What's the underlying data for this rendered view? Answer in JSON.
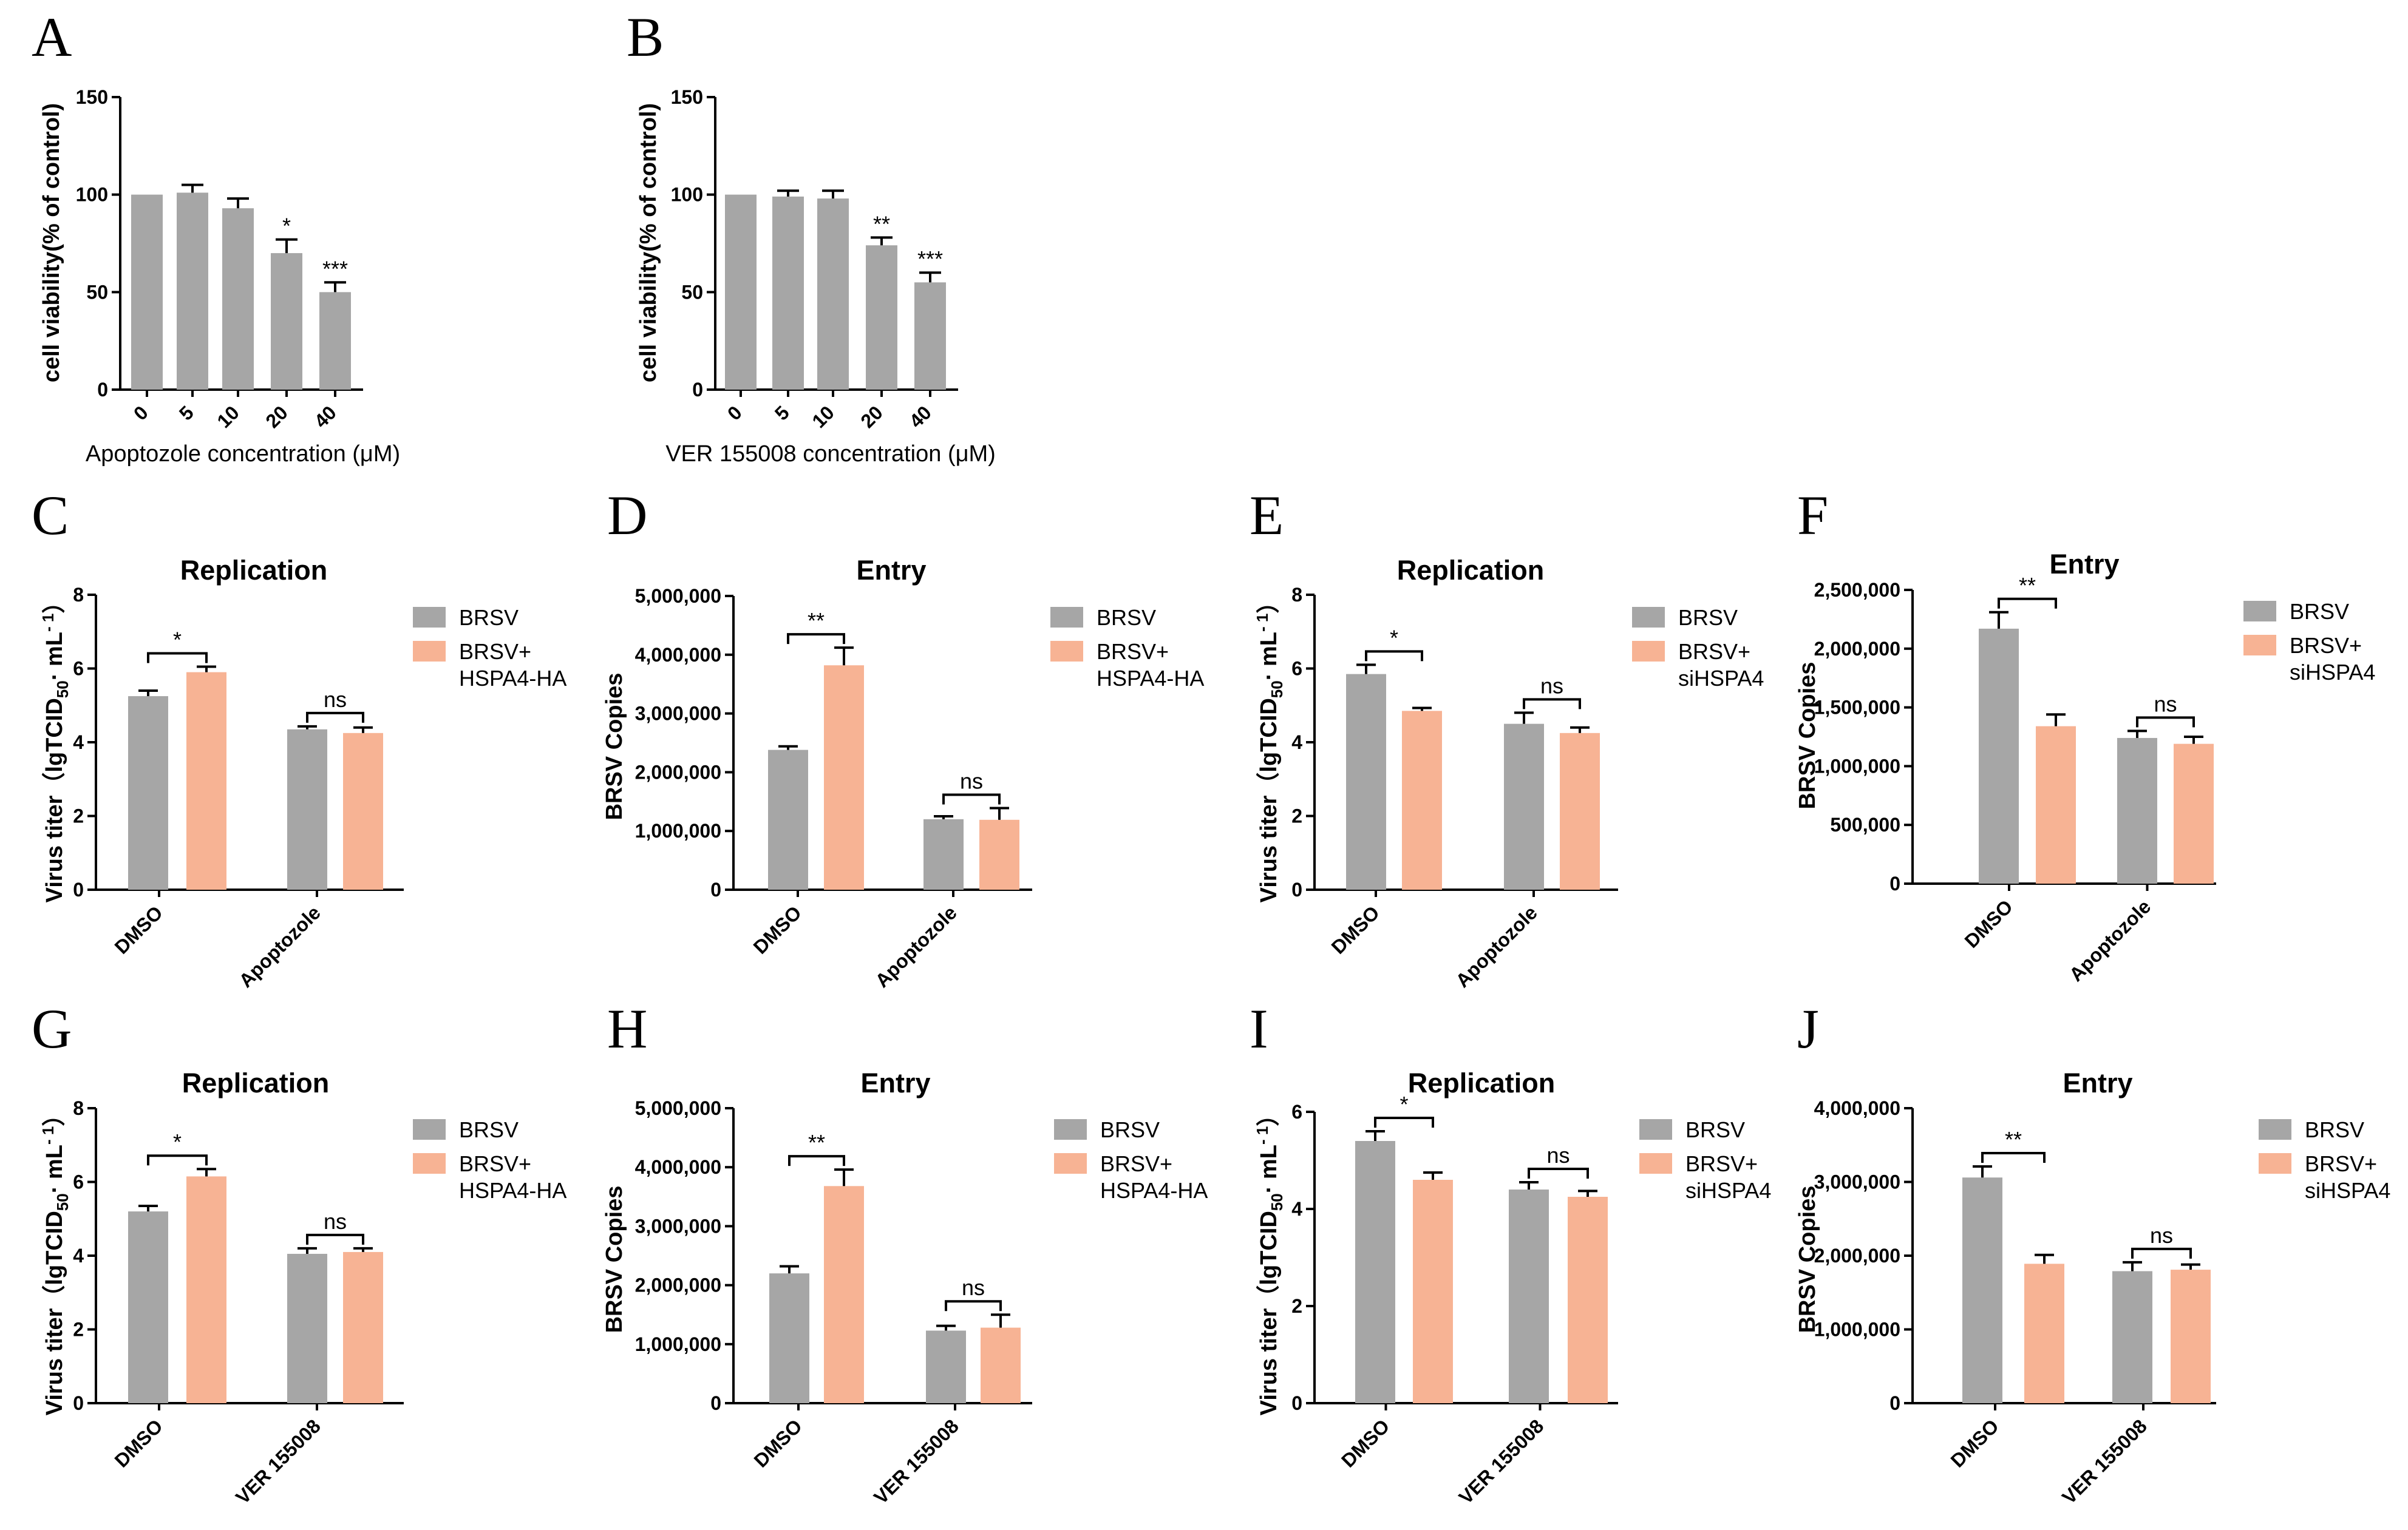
{
  "colors": {
    "bar_grey": "#a6a6a6",
    "bar_orange": "#f7b394",
    "axis": "#000000"
  },
  "chart_data": [
    {
      "id": "A",
      "type": "bar",
      "letter": "A",
      "categories": [
        "0",
        "5",
        "10",
        "20",
        "40"
      ],
      "values": [
        100,
        101,
        93,
        70,
        50
      ],
      "errors": [
        0,
        4,
        5,
        7,
        5
      ],
      "sig": [
        "",
        "",
        "",
        "*",
        "***"
      ],
      "ylabel": "cell viability(% of control)",
      "xlabel": "Apoptozole concentration (μM)",
      "ylim": [
        0,
        150
      ],
      "yticks": [
        "0",
        "50",
        "100",
        "150"
      ]
    },
    {
      "id": "B",
      "type": "bar",
      "letter": "B",
      "categories": [
        "0",
        "5",
        "10",
        "20",
        "40"
      ],
      "values": [
        100,
        99,
        98,
        74,
        55
      ],
      "errors": [
        0,
        3,
        4,
        4,
        5
      ],
      "sig": [
        "",
        "",
        "",
        "**",
        "***"
      ],
      "ylabel": "cell viability(% of control)",
      "xlabel": "VER 155008 concentration (μM)",
      "ylim": [
        0,
        150
      ],
      "yticks": [
        "0",
        "50",
        "100",
        "150"
      ]
    },
    {
      "id": "C",
      "type": "bar",
      "letter": "C",
      "title": "Replication",
      "categories": [
        "DMSO",
        "Apoptozole"
      ],
      "series": [
        {
          "name": "BRSV",
          "values": [
            5.25,
            4.35
          ],
          "errors": [
            0.15,
            0.08
          ]
        },
        {
          "name": "BRSV+ HSPA4-HA",
          "name_line1": "BRSV+",
          "name_line2": "HSPA4-HA",
          "values": [
            5.9,
            4.25
          ],
          "errors": [
            0.15,
            0.15
          ]
        }
      ],
      "sig": [
        "*",
        "ns"
      ],
      "ylabel_main": "Virus titer（lgTCID",
      "ylabel_sub": "50",
      "ylabel_end": "· mL",
      "ylabel_sup": "- 1",
      "ylabel_close": "）",
      "ylim": [
        0,
        8
      ],
      "yticks": [
        "0",
        "2",
        "4",
        "6",
        "8"
      ]
    },
    {
      "id": "D",
      "type": "bar",
      "letter": "D",
      "title": "Entry",
      "categories": [
        "DMSO",
        "Apoptozole"
      ],
      "series": [
        {
          "name": "BRSV",
          "values": [
            2380000,
            1200000
          ],
          "errors": [
            60000,
            50000
          ]
        },
        {
          "name": "BRSV+ HSPA4-HA",
          "name_line1": "BRSV+",
          "name_line2": "HSPA4-HA",
          "values": [
            3820000,
            1190000
          ],
          "errors": [
            300000,
            200000
          ]
        }
      ],
      "sig": [
        "**",
        "ns"
      ],
      "ylabel": "BRSV Copies",
      "ylim": [
        0,
        5000000
      ],
      "yticks": [
        "0",
        "1,000,000",
        "2,000,000",
        "3,000,000",
        "4,000,000",
        "5,000,000"
      ]
    },
    {
      "id": "E",
      "type": "bar",
      "letter": "E",
      "title": "Replication",
      "categories": [
        "DMSO",
        "Apoptozole"
      ],
      "series": [
        {
          "name": "BRSV",
          "values": [
            5.85,
            4.5
          ],
          "errors": [
            0.25,
            0.3
          ]
        },
        {
          "name": "BRSV+ siHSPA4",
          "name_line1": "BRSV+",
          "name_line2": "siHSPA4",
          "values": [
            4.85,
            4.25
          ],
          "errors": [
            0.08,
            0.15
          ]
        }
      ],
      "sig": [
        "*",
        "ns"
      ],
      "ylabel_main": "Virus titer（lgTCID",
      "ylabel_sub": "50",
      "ylabel_end": "· mL",
      "ylabel_sup": "- 1",
      "ylabel_close": "）",
      "ylim": [
        0,
        8
      ],
      "yticks": [
        "0",
        "2",
        "4",
        "6",
        "8"
      ]
    },
    {
      "id": "F",
      "type": "bar",
      "letter": "F",
      "title": "Entry",
      "categories": [
        "DMSO",
        "Apoptozole"
      ],
      "series": [
        {
          "name": "BRSV",
          "values": [
            2170000,
            1240000
          ],
          "errors": [
            140000,
            60000
          ]
        },
        {
          "name": "BRSV+ siHSPA4",
          "name_line1": "BRSV+",
          "name_line2": "siHSPA4",
          "values": [
            1340000,
            1190000
          ],
          "errors": [
            100000,
            60000
          ]
        }
      ],
      "sig": [
        "**",
        "ns"
      ],
      "ylabel": "BRSV Copies",
      "ylim": [
        0,
        2500000
      ],
      "yticks": [
        "0",
        "500,000",
        "1,000,000",
        "1,500,000",
        "2,000,000",
        "2,500,000"
      ]
    },
    {
      "id": "G",
      "type": "bar",
      "letter": "G",
      "title": "Replication",
      "categories": [
        "DMSO",
        "VER 155008"
      ],
      "series": [
        {
          "name": "BRSV",
          "values": [
            5.2,
            4.05
          ],
          "errors": [
            0.15,
            0.15
          ]
        },
        {
          "name": "BRSV+ HSPA4-HA",
          "name_line1": "BRSV+",
          "name_line2": "HSPA4-HA",
          "values": [
            6.15,
            4.1
          ],
          "errors": [
            0.2,
            0.1
          ]
        }
      ],
      "sig": [
        "*",
        "ns"
      ],
      "ylabel_main": "Virus titer（lgTCID",
      "ylabel_sub": "50",
      "ylabel_end": "· mL",
      "ylabel_sup": "- 1",
      "ylabel_close": "）",
      "ylim": [
        0,
        8
      ],
      "yticks": [
        "0",
        "2",
        "4",
        "6",
        "8"
      ]
    },
    {
      "id": "H",
      "type": "bar",
      "letter": "H",
      "title": "Entry",
      "categories": [
        "DMSO",
        "VER 155008"
      ],
      "series": [
        {
          "name": "BRSV",
          "values": [
            2200000,
            1230000
          ],
          "errors": [
            120000,
            80000
          ]
        },
        {
          "name": "BRSV+ HSPA4-HA",
          "name_line1": "BRSV+",
          "name_line2": "HSPA4-HA",
          "values": [
            3680000,
            1280000
          ],
          "errors": [
            280000,
            220000
          ]
        }
      ],
      "sig": [
        "**",
        "ns"
      ],
      "ylabel": "BRSV Copies",
      "ylim": [
        0,
        5000000
      ],
      "yticks": [
        "0",
        "1,000,000",
        "2,000,000",
        "3,000,000",
        "4,000,000",
        "5,000,000"
      ]
    },
    {
      "id": "I",
      "type": "bar",
      "letter": "I",
      "title": "Replication",
      "categories": [
        "DMSO",
        "VER 155008"
      ],
      "series": [
        {
          "name": "BRSV",
          "values": [
            5.4,
            4.4
          ],
          "errors": [
            0.2,
            0.15
          ]
        },
        {
          "name": "BRSV+ siHSPA4",
          "name_line1": "BRSV+",
          "name_line2": "siHSPA4",
          "values": [
            4.6,
            4.25
          ],
          "errors": [
            0.15,
            0.12
          ]
        }
      ],
      "sig": [
        "*",
        "ns"
      ],
      "ylabel_main": "Virus titer（lgTCID",
      "ylabel_sub": "50",
      "ylabel_end": "· mL",
      "ylabel_sup": "- 1",
      "ylabel_close": "）",
      "ylim": [
        0,
        6
      ],
      "yticks": [
        "0",
        "2",
        "4",
        "6"
      ]
    },
    {
      "id": "J",
      "type": "bar",
      "letter": "J",
      "title": "Entry",
      "categories": [
        "DMSO",
        "VER 155008"
      ],
      "series": [
        {
          "name": "BRSV",
          "values": [
            3060000,
            1790000
          ],
          "errors": [
            150000,
            120000
          ]
        },
        {
          "name": "BRSV+ siHSPA4",
          "name_line1": "BRSV+",
          "name_line2": "siHSPA4",
          "values": [
            1890000,
            1810000
          ],
          "errors": [
            120000,
            70000
          ]
        }
      ],
      "sig": [
        "**",
        "ns"
      ],
      "ylabel": "BRSV Copies",
      "ylim": [
        0,
        4000000
      ],
      "yticks": [
        "0",
        "1,000,000",
        "2,000,000",
        "3,000,000",
        "4,000,000"
      ]
    }
  ]
}
